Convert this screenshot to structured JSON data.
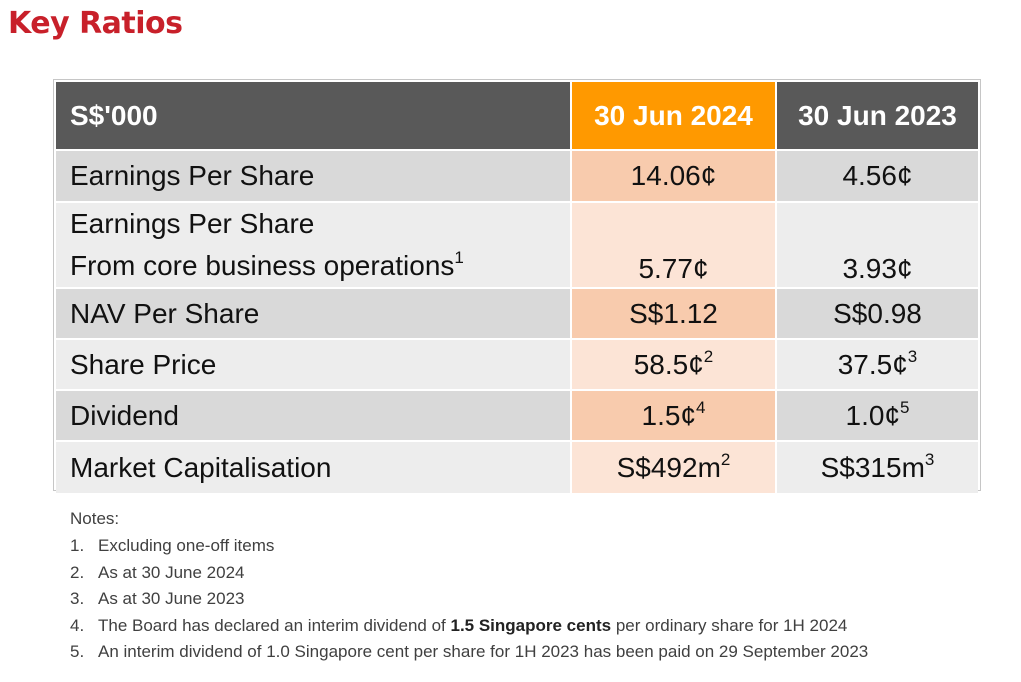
{
  "title": "Key Ratios",
  "table": {
    "header": {
      "label": "S$'000",
      "col1": "30 Jun 2024",
      "col2": "30 Jun 2023"
    },
    "rows": [
      {
        "label": "Earnings Per Share",
        "v1": "14.06¢",
        "v2": "4.56¢"
      },
      {
        "label_line1": "Earnings Per Share",
        "label_line2": "From core business operations",
        "label_sup": "1",
        "v1": "5.77¢",
        "v2": "3.93¢"
      },
      {
        "label": "NAV Per Share",
        "v1": "S$1.12",
        "v2": "S$0.98"
      },
      {
        "label": "Share Price",
        "v1": "58.5¢",
        "v1_sup": "2",
        "v2": "37.5¢",
        "v2_sup": "3"
      },
      {
        "label": "Dividend",
        "v1": "1.5¢",
        "v1_sup": "4",
        "v2": "1.0¢",
        "v2_sup": "5"
      },
      {
        "label": "Market Capitalisation",
        "v1": "S$492m",
        "v1_sup": "2",
        "v2": "S$315m",
        "v2_sup": "3"
      }
    ]
  },
  "notes": {
    "heading": "Notes:",
    "items": [
      {
        "num": "1.",
        "text": "Excluding one-off items"
      },
      {
        "num": "2.",
        "text": "As at 30 June 2024"
      },
      {
        "num": "3.",
        "text": "As at 30 June 2023"
      },
      {
        "num": "4.",
        "text_before": "The Board has declared an interim dividend of ",
        "text_bold": "1.5 Singapore cents",
        "text_after": " per ordinary share for 1H 2024"
      },
      {
        "num": "5.",
        "text": "An interim dividend of 1.0 Singapore cent per share for 1H 2023 has been paid on 29 September 2023"
      }
    ]
  }
}
